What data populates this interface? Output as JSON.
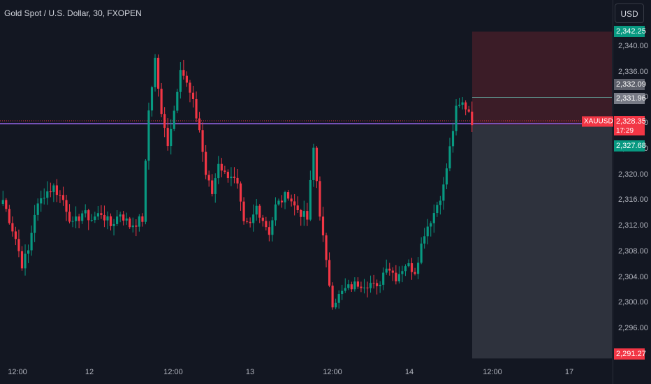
{
  "header": {
    "title": "Gold Spot / U.S. Dollar, 30, FXOPEN",
    "currency_button": "USD"
  },
  "price_axis": {
    "ticks": [
      2340,
      2336,
      2332,
      2328,
      2324,
      2320,
      2316,
      2312,
      2308,
      2304,
      2300,
      2296
    ],
    "tick_labels": [
      "2,340.00",
      "2,336.00",
      "2,332.00",
      "2,328.00",
      "2,324.00",
      "2,320.00",
      "2,316.00",
      "2,312.00",
      "2,308.00",
      "2,304.00",
      "2,300.00",
      "2,296.00"
    ]
  },
  "time_axis": {
    "labels": [
      "12:00",
      "12",
      "12:00",
      "13",
      "12:00",
      "14",
      "12:00",
      "17"
    ]
  },
  "tags": {
    "take_profit": "2,342.25",
    "level_a": "2,332.09",
    "level_b": "2,331.96",
    "symbol": "XAUUSD",
    "last_price": "2,328.35",
    "countdown": "17:29",
    "entry": "2,327.68",
    "stop_loss": "2,291.27"
  },
  "colors": {
    "up": "#089981",
    "down": "#f23645",
    "horizontal_line": "#7e57c2",
    "background": "#131722"
  },
  "chart_data": {
    "type": "candlestick",
    "title": "Gold Spot / U.S. Dollar, 30, FXOPEN",
    "ylim": [
      2291.27,
      2342.25
    ],
    "horizontal_line": 2327.9,
    "position": {
      "entry": 2327.68,
      "target": 2342.25,
      "stop": 2291.27
    },
    "anchors": [
      [
        0,
        2316
      ],
      [
        2,
        2313
      ],
      [
        4,
        2310
      ],
      [
        6,
        2306
      ],
      [
        8,
        2308
      ],
      [
        10,
        2314
      ],
      [
        13,
        2317
      ],
      [
        16,
        2318
      ],
      [
        19,
        2316
      ],
      [
        22,
        2312
      ],
      [
        25,
        2314
      ],
      [
        28,
        2313
      ],
      [
        31,
        2314
      ],
      [
        34,
        2312
      ],
      [
        37,
        2314
      ],
      [
        40,
        2312
      ],
      [
        44,
        2313
      ],
      [
        46,
        2330
      ],
      [
        48,
        2338
      ],
      [
        50,
        2329
      ],
      [
        52,
        2325
      ],
      [
        54,
        2330
      ],
      [
        56,
        2337
      ],
      [
        58,
        2334
      ],
      [
        60,
        2331
      ],
      [
        62,
        2327
      ],
      [
        64,
        2320
      ],
      [
        66,
        2317
      ],
      [
        68,
        2322
      ],
      [
        70,
        2320
      ],
      [
        72,
        2320
      ],
      [
        74,
        2318
      ],
      [
        76,
        2312
      ],
      [
        78,
        2312
      ],
      [
        80,
        2315
      ],
      [
        82,
        2313
      ],
      [
        84,
        2311
      ],
      [
        86,
        2315
      ],
      [
        88,
        2316
      ],
      [
        90,
        2317
      ],
      [
        92,
        2315
      ],
      [
        94,
        2314
      ],
      [
        96,
        2313
      ],
      [
        98,
        2324
      ],
      [
        100,
        2314
      ],
      [
        102,
        2306
      ],
      [
        104,
        2300
      ],
      [
        106,
        2301
      ],
      [
        108,
        2302
      ],
      [
        112,
        2303
      ],
      [
        116,
        2303
      ],
      [
        118,
        2302
      ],
      [
        121,
        2306
      ],
      [
        124,
        2304
      ],
      [
        127,
        2306
      ],
      [
        130,
        2305
      ],
      [
        133,
        2311
      ],
      [
        136,
        2314
      ],
      [
        139,
        2318
      ],
      [
        141,
        2324
      ],
      [
        143,
        2330
      ],
      [
        145,
        2331
      ],
      [
        147,
        2330
      ],
      [
        148,
        2328.35
      ]
    ]
  }
}
